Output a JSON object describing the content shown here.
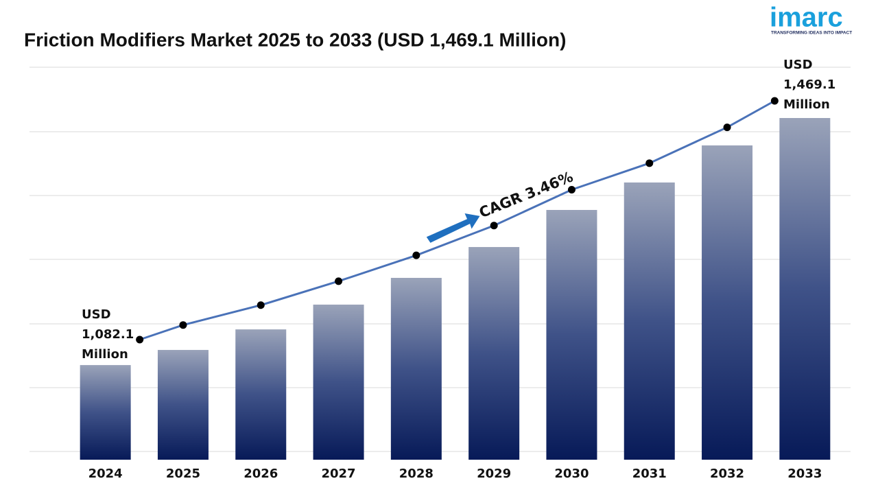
{
  "chart_data": {
    "type": "bar",
    "title": "Friction Modifiers Market 2025 to 2033 (USD 1,469.1 Million)",
    "categories": [
      "2024",
      "2025",
      "2026",
      "2027",
      "2028",
      "2029",
      "2030",
      "2031",
      "2032",
      "2033"
    ],
    "values": [
      1082.1,
      1105.8,
      1138.0,
      1176.8,
      1218.7,
      1267.0,
      1325.1,
      1368.1,
      1426.2,
      1469.1
    ],
    "start_label": [
      "USD",
      "1,082.1",
      "Million"
    ],
    "end_label": [
      "USD",
      "1,469.1",
      "Million"
    ],
    "annotation": "CAGR 3.46%",
    "line_color": "#4a72b8",
    "logo": "imarc",
    "tagline": "TRANSFORMING IDEAS INTO IMPACT"
  }
}
